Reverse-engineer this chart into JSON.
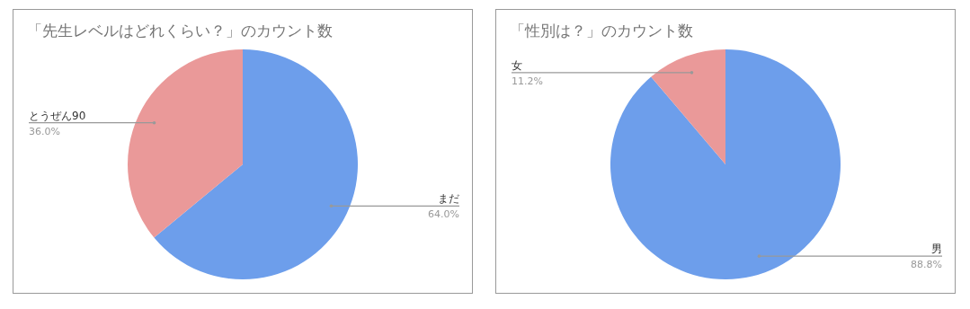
{
  "chart_data": [
    {
      "type": "pie",
      "title": "「先生レベルはどれくらい？」のカウント数",
      "categories": [
        "まだ",
        "とうぜん90"
      ],
      "values": [
        64,
        36
      ],
      "colors": [
        "#6d9eeb",
        "#ea9999"
      ],
      "value_labels": [
        "64.0%",
        "36.0%"
      ]
    },
    {
      "type": "pie",
      "title": "「性別は？」のカウント数",
      "categories": [
        "男",
        "女"
      ],
      "values": [
        88.8,
        11.2
      ],
      "colors": [
        "#6d9eeb",
        "#ea9999"
      ],
      "value_labels": [
        "88.8%",
        "11.2%"
      ]
    }
  ]
}
